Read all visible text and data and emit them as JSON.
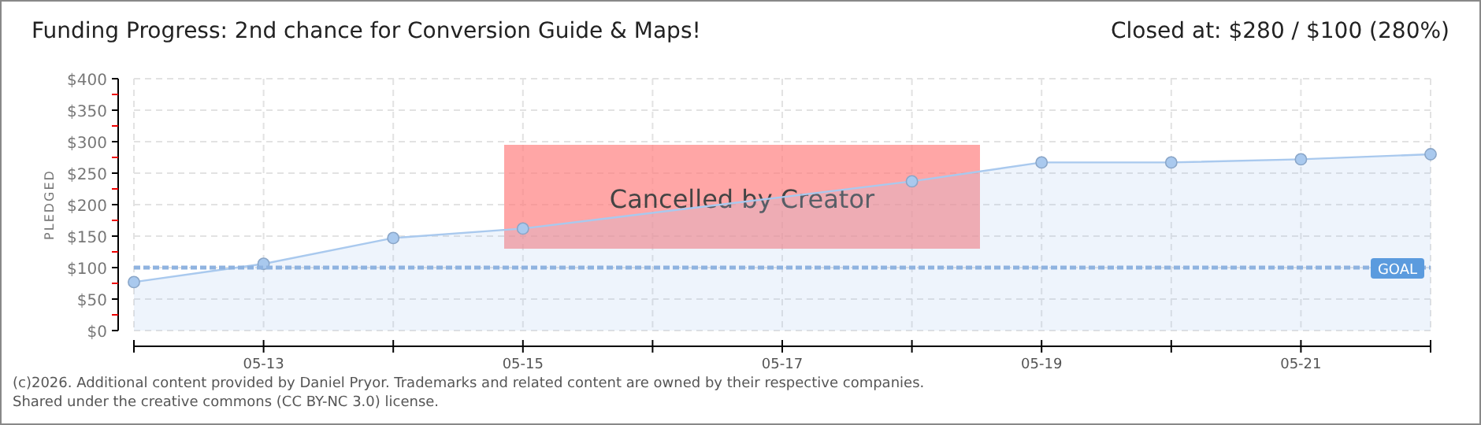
{
  "chart_data": {
    "type": "area",
    "title": "Funding Progress: 2nd chance for Conversion Guide & Maps!",
    "subtitle": "Closed at: $280 / $100 (280%)",
    "ylabel": "PLEDGED",
    "x": [
      "--05-12",
      "--05-13",
      "--05-14",
      "--05-15",
      "--05-18",
      "--05-19",
      "--05-20",
      "--05-21",
      "--05-22"
    ],
    "series": [
      {
        "color": "#a9c9ee",
        "values": [
          77,
          106,
          147,
          162,
          237,
          267,
          267,
          272,
          280
        ]
      }
    ],
    "xlim": [
      "--05-12",
      "--05-22"
    ],
    "xticks": [
      {
        "value": "--05-12",
        "label": null
      },
      {
        "value": "--05-13",
        "label": "05-13"
      },
      {
        "value": "--05-14",
        "label": null
      },
      {
        "value": "--05-15",
        "label": "05-15"
      },
      {
        "value": "--05-16",
        "label": null
      },
      {
        "value": "--05-17",
        "label": "05-17"
      },
      {
        "value": "--05-18",
        "label": null
      },
      {
        "value": "--05-19",
        "label": "05-19"
      },
      {
        "value": "--05-20",
        "label": null
      },
      {
        "value": "--05-21",
        "label": "05-21"
      },
      {
        "value": "--05-22",
        "label": null
      }
    ],
    "ylim": [
      0,
      400
    ],
    "yticks": [
      {
        "value": 0,
        "label": "$0"
      },
      {
        "value": 25,
        "label": null
      },
      {
        "value": 50,
        "label": "$50"
      },
      {
        "value": 75,
        "label": null
      },
      {
        "value": 100,
        "label": "$100"
      },
      {
        "value": 125,
        "label": null
      },
      {
        "value": 150,
        "label": "$150"
      },
      {
        "value": 175,
        "label": null
      },
      {
        "value": 200,
        "label": "$200"
      },
      {
        "value": 225,
        "label": null
      },
      {
        "value": 250,
        "label": "$250"
      },
      {
        "value": 275,
        "label": null
      },
      {
        "value": 300,
        "label": "$300"
      },
      {
        "value": 325,
        "label": null
      },
      {
        "value": 350,
        "label": "$350"
      },
      {
        "value": 375,
        "label": null
      },
      {
        "value": 400,
        "label": "$400"
      }
    ],
    "grid": true,
    "marker": "circle",
    "ref_lines": [
      {
        "axis": "y",
        "value": 100,
        "label": "GOAL",
        "color": "#8fb3e0",
        "line_style": "dashed"
      }
    ],
    "annotations": [
      "Cancelled by Creator",
      "(c)2026. Additional content provided by Daniel Pryor. Trademarks and related content are owned by their respective companies.",
      "Shared under the creative commons (CC BY-NC 3.0) license."
    ]
  }
}
